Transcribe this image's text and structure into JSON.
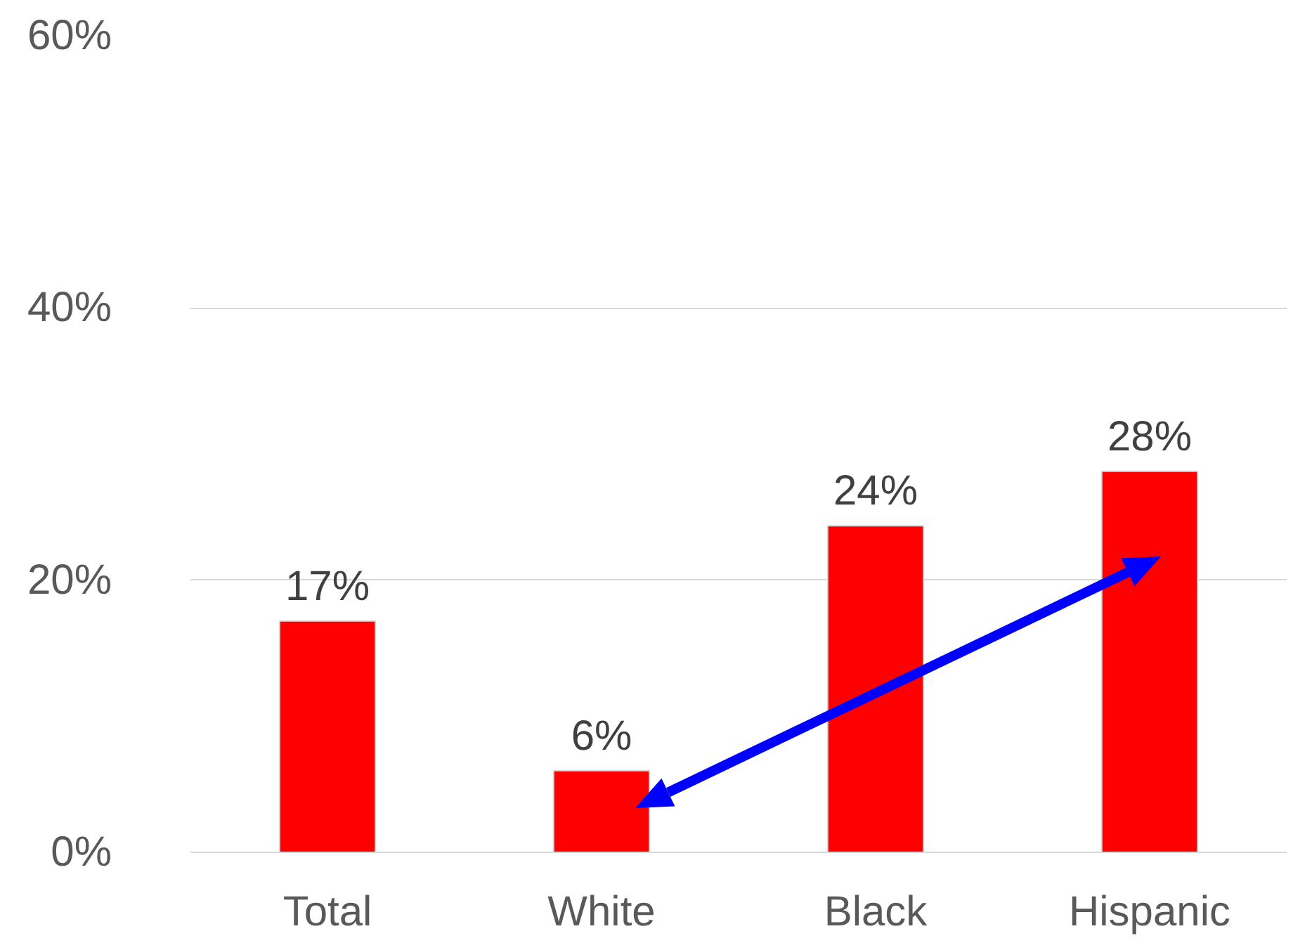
{
  "chart_data": {
    "type": "bar",
    "categories": [
      "Total",
      "White",
      "Black",
      "Hispanic"
    ],
    "values": [
      17,
      6,
      24,
      28
    ],
    "value_labels": [
      "17%",
      "6%",
      "24%",
      "28%"
    ],
    "color": "#ff0000",
    "ylim": [
      0,
      60
    ],
    "yticks": [
      {
        "value": 0,
        "label": "0%"
      },
      {
        "value": 20,
        "label": "20%"
      },
      {
        "value": 40,
        "label": "40%"
      },
      {
        "value": 60,
        "label": "60%"
      }
    ],
    "grid": "y"
  }
}
